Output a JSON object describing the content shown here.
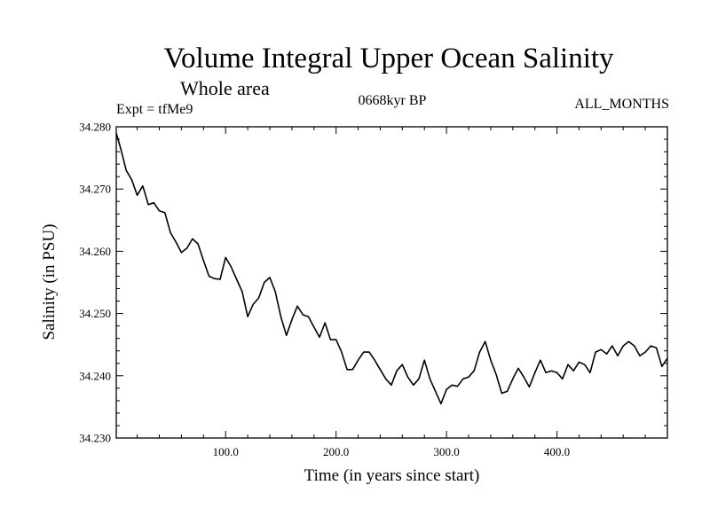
{
  "chart_data": {
    "type": "line",
    "title": "Volume Integral Upper Ocean Salinity",
    "subtitle": "Whole area",
    "expt_label": "Expt = tfMe9",
    "period_label": "0668kyr BP",
    "months_label": "ALL_MONTHS",
    "xlabel": "Time (in years since start)",
    "ylabel": "Salinity (in PSU)",
    "xlim": [
      1,
      500
    ],
    "ylim": [
      34.23,
      34.28
    ],
    "x_ticks": [
      100,
      200,
      300,
      400
    ],
    "x_tick_labels": [
      "100.0",
      "200.0",
      "300.0",
      "400.0"
    ],
    "y_ticks": [
      34.23,
      34.24,
      34.25,
      34.26,
      34.27,
      34.28
    ],
    "y_tick_labels": [
      "34.230",
      "34.240",
      "34.250",
      "34.260",
      "34.270",
      "34.280"
    ],
    "grid": false,
    "line_color": "#000000",
    "series": [
      {
        "x": [
          1,
          5,
          10,
          15,
          20,
          25,
          30,
          35,
          40,
          45,
          50,
          55,
          60,
          65,
          70,
          75,
          80,
          85,
          90,
          95,
          100,
          105,
          110,
          115,
          120,
          125,
          130,
          135,
          140,
          145,
          150,
          155,
          160,
          165,
          170,
          175,
          180,
          185,
          190,
          195,
          200,
          205,
          210,
          215,
          220,
          225,
          230,
          235,
          240,
          245,
          250,
          255,
          260,
          265,
          270,
          275,
          280,
          285,
          290,
          295,
          300,
          305,
          310,
          315,
          320,
          325,
          330,
          335,
          340,
          345,
          350,
          355,
          360,
          365,
          370,
          375,
          380,
          385,
          390,
          395,
          400,
          405,
          410,
          415,
          420,
          425,
          430,
          435,
          440,
          445,
          450,
          455,
          460,
          465,
          470,
          475,
          480,
          485,
          490,
          495,
          500
        ],
        "values": [
          34.279,
          34.2765,
          34.273,
          34.2715,
          34.269,
          34.2705,
          34.2675,
          34.2678,
          34.2665,
          34.2662,
          34.263,
          34.2615,
          34.2598,
          34.2605,
          34.262,
          34.2612,
          34.2585,
          34.256,
          34.2556,
          34.2555,
          34.259,
          34.2575,
          34.2555,
          34.2535,
          34.2495,
          34.2515,
          34.2525,
          34.255,
          34.2558,
          34.2535,
          34.2495,
          34.2465,
          34.249,
          34.2512,
          34.2498,
          34.2495,
          34.2478,
          34.2462,
          34.2485,
          34.2458,
          34.2458,
          34.2438,
          34.241,
          34.241,
          34.2425,
          34.2438,
          34.2438,
          34.2425,
          34.241,
          34.2395,
          34.2385,
          34.2408,
          34.2418,
          34.2398,
          34.2385,
          34.2395,
          34.2425,
          34.2395,
          34.2375,
          34.2355,
          34.2378,
          34.2385,
          34.2383,
          34.2395,
          34.2398,
          34.2408,
          34.2438,
          34.2455,
          34.2425,
          34.2402,
          34.2372,
          34.2375,
          34.2395,
          34.2412,
          34.2398,
          34.2382,
          34.2405,
          34.2425,
          34.2405,
          34.2408,
          34.2405,
          34.2395,
          34.2418,
          34.2408,
          34.2422,
          34.2418,
          34.2405,
          34.2438,
          34.2442,
          34.2435,
          34.2448,
          34.2432,
          34.2448,
          34.2455,
          34.2448,
          34.2432,
          34.2438,
          34.2448,
          34.2445,
          34.2415,
          34.2428
        ]
      }
    ]
  }
}
